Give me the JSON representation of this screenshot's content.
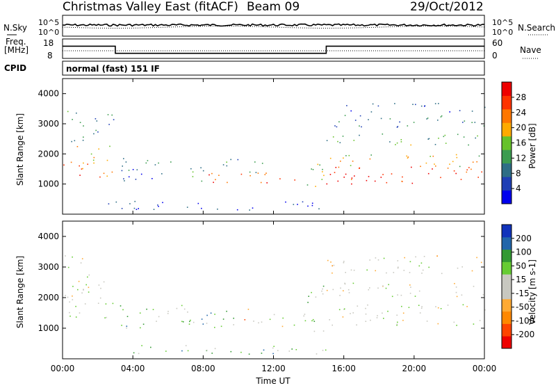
{
  "header": {
    "title": "Christmas Valley East (fitACF)",
    "beam": "Beam 09",
    "date": "29/Oct/2012",
    "cpid_label": "CPID",
    "cpid_value": "normal (fast) 151 IF"
  },
  "top_panels": {
    "nsky": {
      "label": "N.Sky",
      "ticks": [
        "10^5",
        "10^0"
      ],
      "right_ticks": [
        "10^5",
        "10^0"
      ],
      "right_label": "N.Search"
    },
    "freq": {
      "label_line1": "Freq.",
      "label_line2": "[MHz]",
      "ticks": [
        "18",
        "8"
      ],
      "right_ticks": [
        "60",
        "0"
      ],
      "right_label": "Nave",
      "steps_x": [
        0,
        3.0,
        15.0,
        24
      ],
      "steps_y": [
        14.3,
        10.6,
        14.3
      ]
    }
  },
  "colors": {
    "power": [
      "#0000ee",
      "#1f3fb5",
      "#2e6e86",
      "#3c9c50",
      "#66c22a",
      "#ffaa00",
      "#ff7700",
      "#ff3300",
      "#ee0000"
    ],
    "velocity": [
      "#ee0000",
      "#ff4400",
      "#ff8800",
      "#ffaa33",
      "#c8c8c0",
      "#c8c8c0",
      "#66cc33",
      "#339933",
      "#2266aa",
      "#1133bb"
    ]
  },
  "chart_data": [
    {
      "type": "heatmap",
      "name": "power",
      "xlim": [
        0,
        24
      ],
      "ylim": [
        0,
        4500
      ],
      "xlabel": "",
      "ylabel": "Slant Range [km]",
      "yticks": [
        "4000",
        "3000",
        "2000",
        "1000"
      ],
      "colorbar_label": "Power [dB]",
      "colorbar_ticks": [
        "28",
        "24",
        "20",
        "16",
        "12",
        "8",
        "4"
      ],
      "bands": [
        {
          "x0": 0.0,
          "x1": 2.9,
          "y0": 1200,
          "y1": 1700,
          "level": 0.75
        },
        {
          "x0": 0.4,
          "x1": 2.8,
          "y0": 1700,
          "y1": 2300,
          "level": 0.6
        },
        {
          "x0": 0.0,
          "x1": 1.2,
          "y0": 2400,
          "y1": 3500,
          "level": 0.35
        },
        {
          "x0": 1.5,
          "x1": 3.0,
          "y0": 2600,
          "y1": 3400,
          "level": 0.25
        },
        {
          "x0": 3.2,
          "x1": 6.2,
          "y0": 1100,
          "y1": 2000,
          "level": 0.25
        },
        {
          "x0": 6.2,
          "x1": 8.0,
          "y0": 1100,
          "y1": 1600,
          "level": 0.4
        },
        {
          "x0": 8.0,
          "x1": 13.9,
          "y0": 1050,
          "y1": 1400,
          "level": 0.85
        },
        {
          "x0": 9.0,
          "x1": 11.6,
          "y0": 1400,
          "y1": 1900,
          "level": 0.3
        },
        {
          "x0": 13.8,
          "x1": 15.0,
          "y0": 900,
          "y1": 2100,
          "level": 0.5
        },
        {
          "x0": 15.0,
          "x1": 24.0,
          "y0": 1000,
          "y1": 1600,
          "level": 0.9
        },
        {
          "x0": 15.0,
          "x1": 24.0,
          "y0": 1600,
          "y1": 2000,
          "level": 0.55
        },
        {
          "x0": 15.0,
          "x1": 24.0,
          "y0": 2300,
          "y1": 2700,
          "level": 0.4
        },
        {
          "x0": 15.0,
          "x1": 24.0,
          "y0": 2900,
          "y1": 3300,
          "level": 0.3
        },
        {
          "x0": 16.0,
          "x1": 24.0,
          "y0": 3400,
          "y1": 3700,
          "level": 0.2
        },
        {
          "x0": 2.5,
          "x1": 15.0,
          "y0": 150,
          "y1": 450,
          "level": 0.15
        }
      ]
    },
    {
      "type": "heatmap",
      "name": "velocity",
      "xlim": [
        0,
        24
      ],
      "ylim": [
        0,
        4500
      ],
      "xlabel": "Time UT",
      "ylabel": "Slant Range [km]",
      "xticks": [
        "00:00",
        "04:00",
        "08:00",
        "12:00",
        "16:00",
        "20:00",
        "00:00"
      ],
      "yticks": [
        "4000",
        "3000",
        "2000",
        "1000"
      ],
      "colorbar_label": "Velocity [m s-1]",
      "colorbar_ticks": [
        "200",
        "100",
        "50",
        "15",
        "-15",
        "-50",
        "-100",
        "-200"
      ],
      "bands": [
        {
          "x0": 0.0,
          "x1": 2.9,
          "y0": 1300,
          "y1": 2100,
          "level": 0.5
        },
        {
          "x0": 0.3,
          "x1": 2.8,
          "y0": 2100,
          "y1": 2900,
          "level": 0.5
        },
        {
          "x0": 0.0,
          "x1": 1.2,
          "y0": 2900,
          "y1": 3500,
          "level": 0.5
        },
        {
          "x0": 3.2,
          "x1": 7.6,
          "y0": 1000,
          "y1": 1800,
          "level": 0.65
        },
        {
          "x0": 7.6,
          "x1": 8.6,
          "y0": 1000,
          "y1": 1700,
          "level": 0.72
        },
        {
          "x0": 8.6,
          "x1": 10.2,
          "y0": 1000,
          "y1": 1650,
          "level": 0.65
        },
        {
          "x0": 10.2,
          "x1": 10.6,
          "y0": 1000,
          "y1": 1700,
          "level": 0.3
        },
        {
          "x0": 10.6,
          "x1": 13.8,
          "y0": 1000,
          "y1": 1500,
          "level": 0.5
        },
        {
          "x0": 13.8,
          "x1": 15.0,
          "y0": 900,
          "y1": 2400,
          "level": 0.65
        },
        {
          "x0": 15.0,
          "x1": 24.0,
          "y0": 1100,
          "y1": 1800,
          "level": 0.5
        },
        {
          "x0": 15.0,
          "x1": 24.0,
          "y0": 2000,
          "y1": 2500,
          "level": 0.5
        },
        {
          "x0": 15.0,
          "x1": 24.0,
          "y0": 2800,
          "y1": 3400,
          "level": 0.45
        },
        {
          "x0": 2.5,
          "x1": 15.0,
          "y0": 150,
          "y1": 450,
          "level": 0.65
        }
      ]
    }
  ]
}
